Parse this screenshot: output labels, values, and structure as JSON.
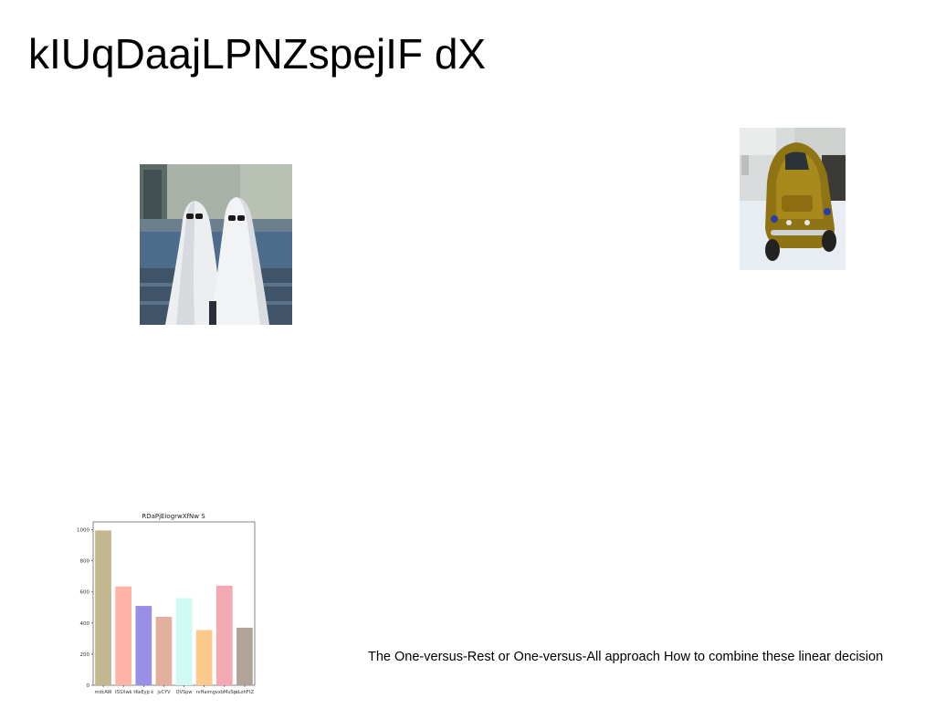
{
  "slide": {
    "title": "kIUqDaajLPNZspejIF dX",
    "caption": "The One-versus-Rest or One-versus-All approach How to combine these linear decision"
  },
  "images": {
    "ghosts": "photo-two-people-in-ghost-sheets-with-sunglasses",
    "car": "photo-yellow-vintage-beetle-car"
  },
  "chart_data": {
    "type": "bar",
    "title": "RDaPjEiogrwXfNw S",
    "categories": [
      "mdcAW",
      "tSSXwk",
      "tKeEyp k",
      "jvCYV",
      "QVSpw",
      "rvHaim",
      "gvxbMuSp",
      "aLohFtZ"
    ],
    "values": [
      995,
      635,
      510,
      440,
      560,
      355,
      640,
      370
    ],
    "colors": [
      "#c2b78f",
      "#ffb3a6",
      "#9a8fe6",
      "#e3b09d",
      "#cffaf3",
      "#fcc98a",
      "#f4a8b2",
      "#b0a499"
    ],
    "ylim": [
      0,
      1050
    ],
    "yticks": [
      0,
      200,
      400,
      600,
      800,
      1000
    ],
    "xlabel": "",
    "ylabel": ""
  }
}
